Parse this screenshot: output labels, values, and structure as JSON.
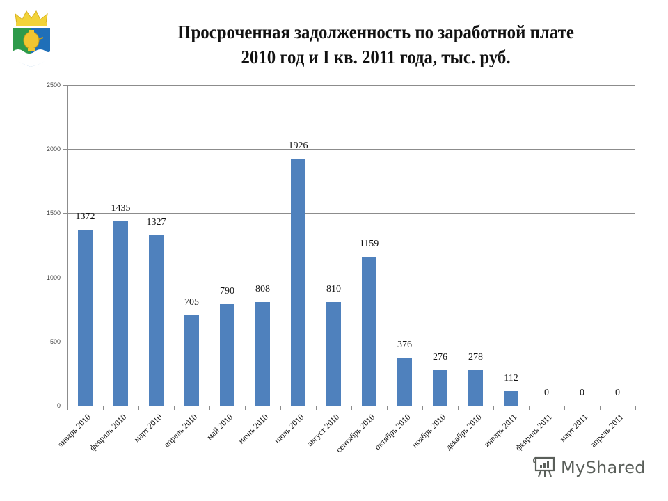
{
  "header": {
    "title_line1": "Просроченная задолженность по заработной плате",
    "title_line2": "2010 год и I кв. 2011 года, тыс. руб."
  },
  "emblem": {
    "icon": "coat-of-arms-icon",
    "colors": {
      "crown": "#f2d33a",
      "shield_green": "#2e9a4a",
      "shield_blue": "#1f6fb8",
      "samovar": "#f2c530",
      "wave": "#ffffff"
    }
  },
  "watermark": {
    "icon": "presentation-board-icon",
    "text": "MyShared"
  },
  "chart_data": {
    "type": "bar",
    "title": "Просроченная задолженность по заработной плате 2010 год и I кв. 2011 года, тыс. руб.",
    "xlabel": "",
    "ylabel": "",
    "ylim": [
      0,
      2500
    ],
    "yticks": [
      0,
      500,
      1000,
      1500,
      2000,
      2500
    ],
    "grid": true,
    "legend": null,
    "bar_color": "#4f81bd",
    "categories": [
      "январь 2010",
      "февраль 2010",
      "март 2010",
      "апрель 2010",
      "май 2010",
      "июнь 2010",
      "июль 2010",
      "август 2010",
      "сентябрь 2010",
      "октябрь 2010",
      "ноябрь 2010",
      "декабрь 2010",
      "январь 2011",
      "февраль 2011",
      "март 2011",
      "апрель 2011"
    ],
    "values": [
      1372,
      1435,
      1327,
      705,
      790,
      808,
      1926,
      810,
      1159,
      376,
      276,
      278,
      112,
      0,
      0,
      0
    ],
    "data_labels": [
      "1372",
      "1435",
      "1327",
      "705",
      "790",
      "808",
      "1926",
      "810",
      "1159",
      "376",
      "276",
      "278",
      "112",
      "0",
      "0",
      "0"
    ]
  }
}
